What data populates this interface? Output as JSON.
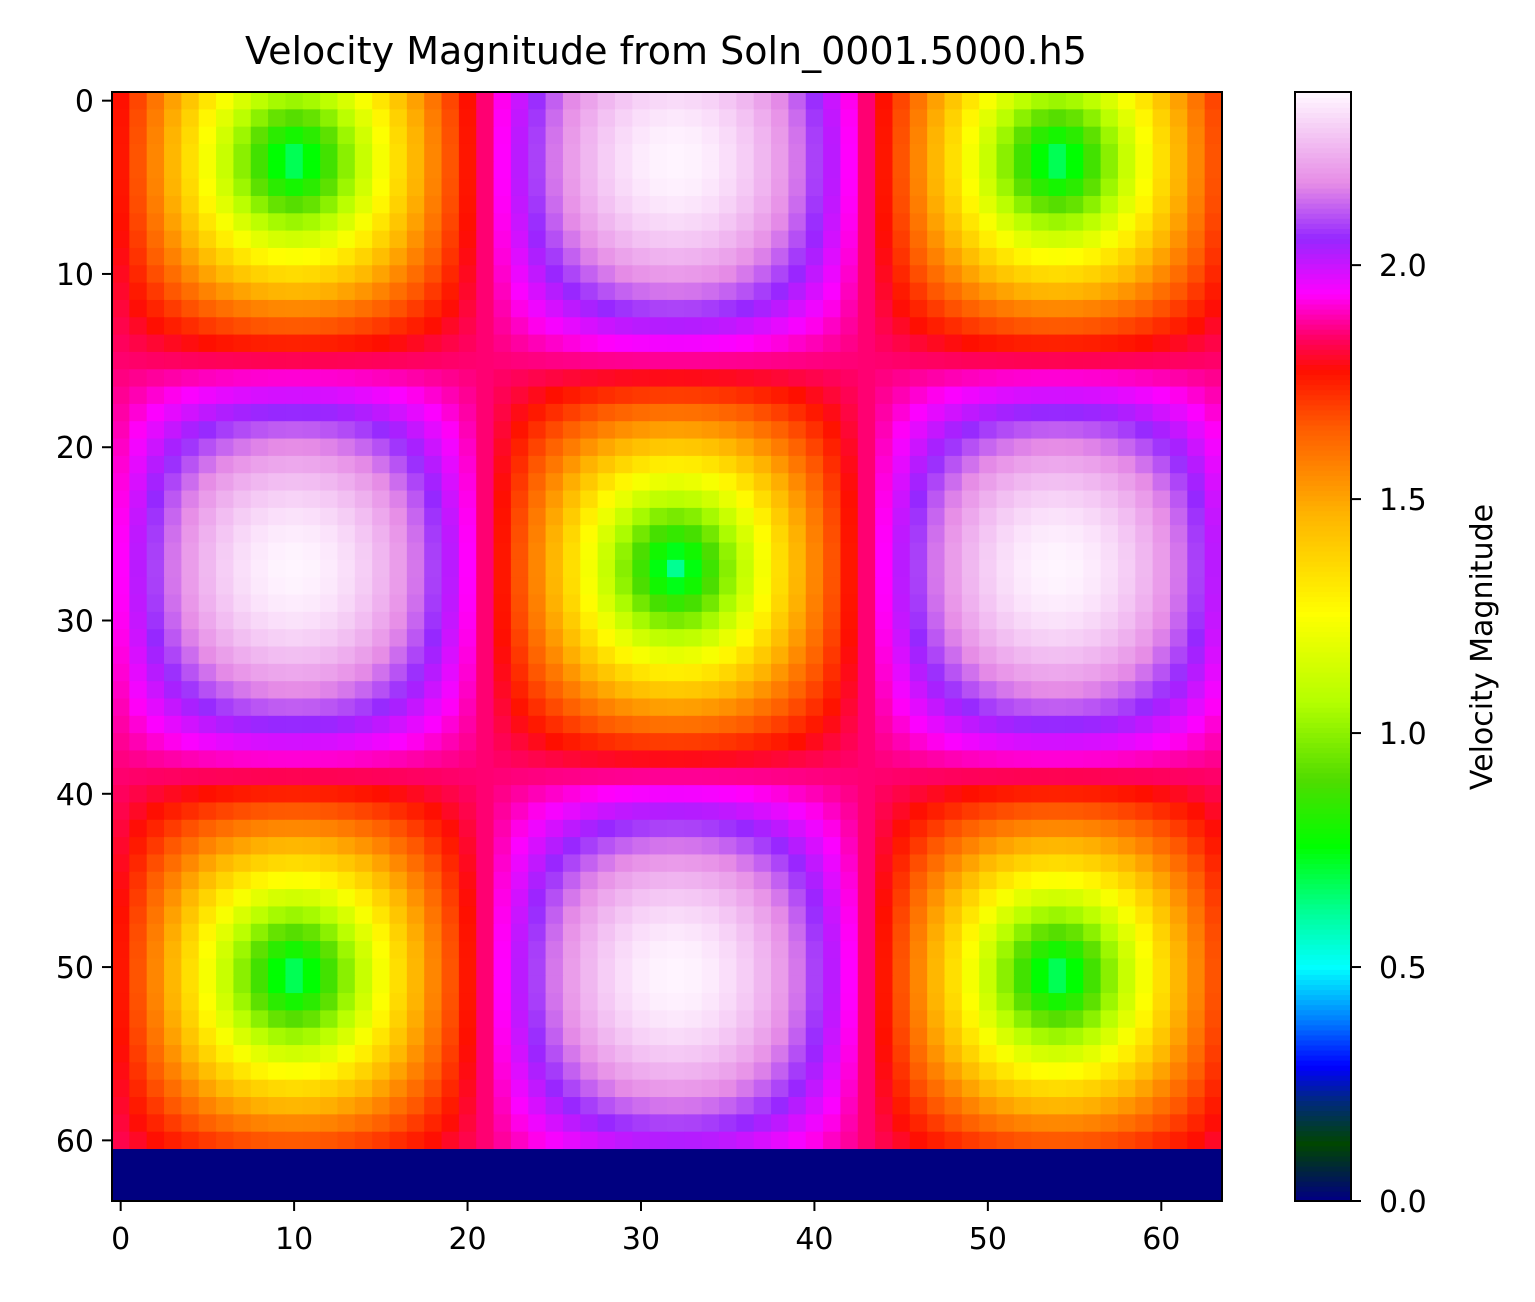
{
  "chart_data": {
    "type": "heatmap",
    "title": "Velocity Magnitude from Soln_0001.5000.h5",
    "grid_size": [
      64,
      64
    ],
    "x_ticks": [
      0,
      10,
      20,
      30,
      40,
      50,
      60
    ],
    "y_ticks": [
      0,
      10,
      20,
      30,
      40,
      50,
      60
    ],
    "y_origin": "top",
    "xlim": [
      -0.5,
      63.5
    ],
    "ylim": [
      63.5,
      -0.5
    ],
    "value_range": [
      0,
      2.37
    ],
    "field": {
      "description_of_pattern": "periodic vortex-like pattern in rows 0-60; rows 61-63 are zero",
      "center_min": {
        "row": 27,
        "col": 32,
        "value": 0.62
      },
      "max_value": 2.37,
      "zero_rows": [
        61,
        62,
        63
      ]
    },
    "colorbar": {
      "label": "Velocity Magnitude",
      "ticks": [
        0.0,
        0.5,
        1.0,
        1.5,
        2.0
      ],
      "tick_labels": [
        "0.0",
        "0.5",
        "1.0",
        "1.5",
        "2.0"
      ],
      "colormap": "gist_ncar"
    },
    "grid": false
  }
}
